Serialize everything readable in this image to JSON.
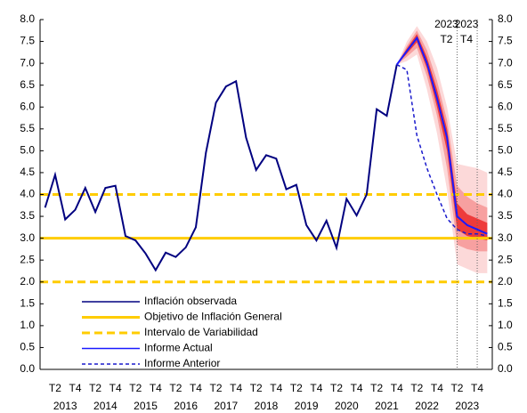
{
  "chart_data": {
    "type": "line",
    "categories": [
      null,
      "T2",
      null,
      "T4",
      null,
      "T2",
      null,
      "T4",
      null,
      "T2",
      null,
      "T4",
      null,
      "T2",
      null,
      "T4",
      null,
      "T2",
      null,
      "T4",
      null,
      "T2",
      null,
      "T4",
      null,
      "T2",
      null,
      "T4",
      null,
      "T2",
      null,
      "T4",
      null,
      "T2",
      null,
      "T4",
      null,
      "T2",
      null,
      "T4",
      null,
      "T2",
      null,
      "T4",
      null
    ],
    "years": [
      "2013",
      "2014",
      "2015",
      "2016",
      "2017",
      "2018",
      "2019",
      "2020",
      "2021",
      "2022",
      "2023"
    ],
    "ylim": [
      0,
      8
    ],
    "yticks": [
      {
        "value": 0,
        "label": "0.0"
      },
      {
        "value": 0.5,
        "label": "0.5"
      },
      {
        "value": 1,
        "label": "1.0"
      },
      {
        "value": 1.5,
        "label": "1.5"
      },
      {
        "value": 2,
        "label": "2.0"
      },
      {
        "value": 2.5,
        "label": "2.5"
      },
      {
        "value": 3,
        "label": "3.0"
      },
      {
        "value": 3.5,
        "label": "3.5"
      },
      {
        "value": 4,
        "label": "4.0"
      },
      {
        "value": 4.5,
        "label": "4.5"
      },
      {
        "value": 5,
        "label": "5.0"
      },
      {
        "value": 5.5,
        "label": "5.5"
      },
      {
        "value": 6,
        "label": "6.0"
      },
      {
        "value": 6.5,
        "label": "6.5"
      },
      {
        "value": 7,
        "label": "7.0"
      },
      {
        "value": 7.5,
        "label": "7.5"
      },
      {
        "value": 8,
        "label": "8.0"
      }
    ],
    "series": [
      {
        "name": "Inflación observada",
        "color": "#000080",
        "dash": false,
        "values": [
          3.7,
          4.45,
          3.43,
          3.65,
          4.15,
          3.6,
          4.15,
          4.2,
          3.05,
          2.95,
          2.65,
          2.27,
          2.67,
          2.57,
          2.79,
          3.25,
          4.95,
          6.1,
          6.47,
          6.59,
          5.3,
          4.56,
          4.9,
          4.82,
          4.12,
          4.22,
          3.3,
          2.95,
          3.4,
          2.78,
          3.9,
          3.52,
          4.0,
          5.95,
          5.8,
          6.97,
          null,
          null,
          null,
          null,
          null,
          null,
          null,
          null,
          null
        ]
      },
      {
        "name": "Informe Actual",
        "color": "#1a1aff",
        "dash": false,
        "values": [
          null,
          null,
          null,
          null,
          null,
          null,
          null,
          null,
          null,
          null,
          null,
          null,
          null,
          null,
          null,
          null,
          null,
          null,
          null,
          null,
          null,
          null,
          null,
          null,
          null,
          null,
          null,
          null,
          null,
          null,
          null,
          null,
          null,
          null,
          null,
          6.97,
          7.28,
          7.58,
          7.0,
          6.2,
          5.3,
          3.5,
          3.3,
          3.2,
          3.1
        ]
      },
      {
        "name": "Informe Anterior",
        "color": "#1a1acc",
        "dash": true,
        "values": [
          null,
          null,
          null,
          null,
          null,
          null,
          null,
          null,
          null,
          null,
          null,
          null,
          null,
          null,
          null,
          null,
          null,
          null,
          null,
          null,
          null,
          null,
          null,
          null,
          null,
          null,
          null,
          null,
          null,
          null,
          null,
          null,
          null,
          null,
          null,
          6.97,
          6.85,
          5.35,
          4.6,
          4.0,
          3.45,
          3.2,
          3.1,
          3.1,
          3.05
        ]
      }
    ],
    "fan": [
      {
        "color": "#fcd9d9",
        "lower": [
          null,
          null,
          null,
          null,
          null,
          null,
          null,
          null,
          null,
          null,
          null,
          null,
          null,
          null,
          null,
          null,
          null,
          null,
          null,
          null,
          null,
          null,
          null,
          null,
          null,
          null,
          null,
          null,
          null,
          null,
          null,
          null,
          null,
          null,
          null,
          6.97,
          7.05,
          7.2,
          6.4,
          5.4,
          4.1,
          2.4,
          2.3,
          2.2,
          2.2
        ],
        "upper": [
          null,
          null,
          null,
          null,
          null,
          null,
          null,
          null,
          null,
          null,
          null,
          null,
          null,
          null,
          null,
          null,
          null,
          null,
          null,
          null,
          null,
          null,
          null,
          null,
          null,
          null,
          null,
          null,
          null,
          null,
          null,
          null,
          null,
          null,
          null,
          6.97,
          7.5,
          7.85,
          7.5,
          6.9,
          6.0,
          4.7,
          4.65,
          4.6,
          4.5
        ]
      },
      {
        "color": "#f7a0a0",
        "lower": [
          null,
          null,
          null,
          null,
          null,
          null,
          null,
          null,
          null,
          null,
          null,
          null,
          null,
          null,
          null,
          null,
          null,
          null,
          null,
          null,
          null,
          null,
          null,
          null,
          null,
          null,
          null,
          null,
          null,
          null,
          null,
          null,
          null,
          null,
          null,
          6.97,
          7.15,
          7.35,
          6.7,
          5.8,
          4.6,
          2.85,
          2.75,
          2.7,
          2.7
        ],
        "upper": [
          null,
          null,
          null,
          null,
          null,
          null,
          null,
          null,
          null,
          null,
          null,
          null,
          null,
          null,
          null,
          null,
          null,
          null,
          null,
          null,
          null,
          null,
          null,
          null,
          null,
          null,
          null,
          null,
          null,
          null,
          null,
          null,
          null,
          null,
          null,
          6.97,
          7.4,
          7.75,
          7.3,
          6.6,
          5.7,
          4.2,
          3.95,
          3.8,
          3.7
        ]
      },
      {
        "color": "#ee3b3b",
        "lower": [
          null,
          null,
          null,
          null,
          null,
          null,
          null,
          null,
          null,
          null,
          null,
          null,
          null,
          null,
          null,
          null,
          null,
          null,
          null,
          null,
          null,
          null,
          null,
          null,
          null,
          null,
          null,
          null,
          null,
          null,
          null,
          null,
          null,
          null,
          null,
          6.97,
          7.22,
          7.48,
          6.88,
          6.0,
          5.0,
          3.2,
          3.05,
          3.0,
          2.95
        ],
        "upper": [
          null,
          null,
          null,
          null,
          null,
          null,
          null,
          null,
          null,
          null,
          null,
          null,
          null,
          null,
          null,
          null,
          null,
          null,
          null,
          null,
          null,
          null,
          null,
          null,
          null,
          null,
          null,
          null,
          null,
          null,
          null,
          null,
          null,
          null,
          null,
          6.97,
          7.34,
          7.67,
          7.14,
          6.4,
          5.5,
          3.8,
          3.55,
          3.45,
          3.35
        ]
      }
    ],
    "reference_lines": [
      {
        "name": "Objetivo de Inflación General",
        "color": "#ffcc00",
        "dash": false,
        "values": [
          3
        ]
      },
      {
        "name": "Intervalo de Variabilidad",
        "color": "#ffcc00",
        "dash": true,
        "values": [
          2,
          4
        ]
      }
    ],
    "annotations": [
      {
        "year": "2023",
        "quarter": "T2"
      },
      {
        "year": "2023",
        "quarter": "T4"
      }
    ]
  }
}
